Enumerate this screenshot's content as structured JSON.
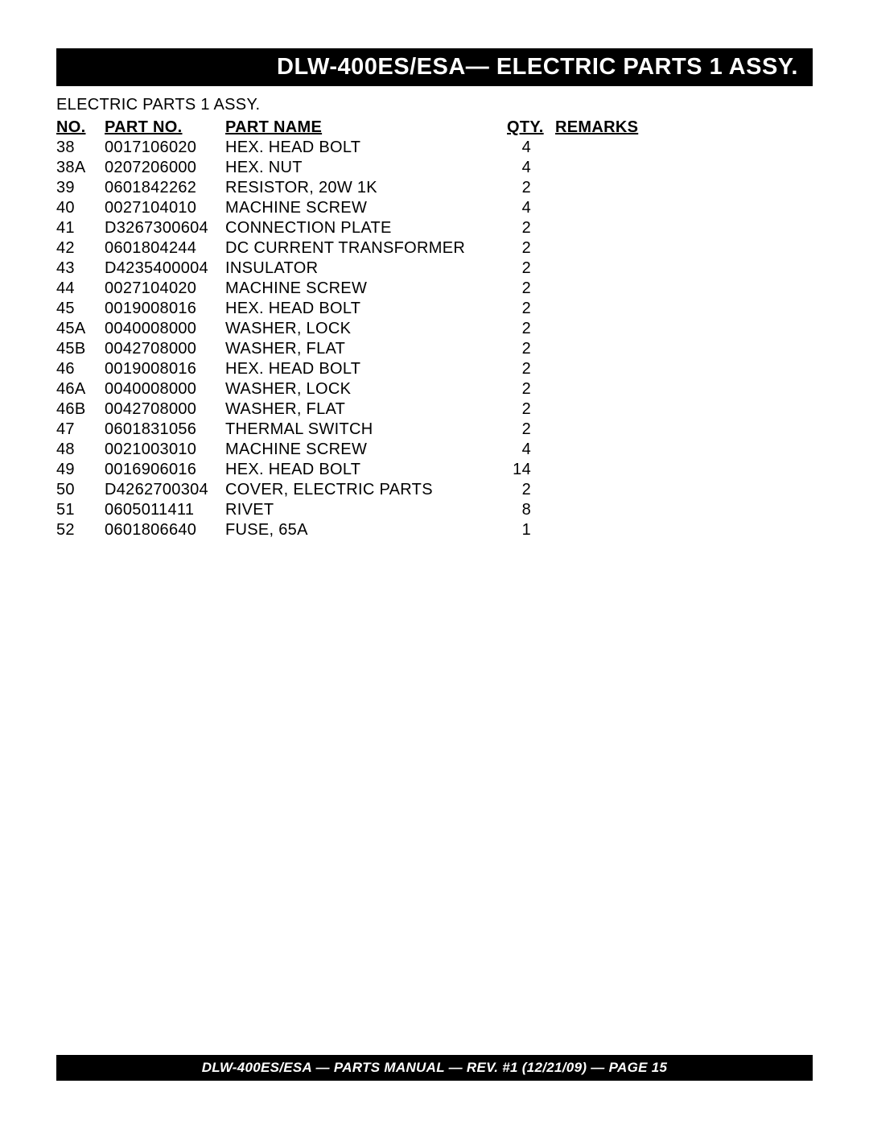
{
  "header": {
    "title": "DLW-400ES/ESA— ELECTRIC PARTS 1 ASSY."
  },
  "subtitle": "ELECTRIC PARTS 1 ASSY.",
  "table": {
    "columns": {
      "no": "NO.",
      "part_no": "PART NO.",
      "part_name": "PART NAME",
      "qty": "QTY.",
      "remarks": "REMARKS"
    },
    "rows": [
      {
        "no": "38",
        "pn": "0017106020",
        "name": "HEX. HEAD BOLT",
        "qty": "4",
        "rem": ""
      },
      {
        "no": "38A",
        "pn": "0207206000",
        "name": "HEX. NUT",
        "qty": "4",
        "rem": ""
      },
      {
        "no": "39",
        "pn": "0601842262",
        "name": "RESISTOR, 20W 1K",
        "qty": "2",
        "rem": ""
      },
      {
        "no": "40",
        "pn": "0027104010",
        "name": "MACHINE SCREW",
        "qty": "4",
        "rem": ""
      },
      {
        "no": "41",
        "pn": "D3267300604",
        "name": "CONNECTION PLATE",
        "qty": "2",
        "rem": ""
      },
      {
        "no": "42",
        "pn": "0601804244",
        "name": "DC CURRENT TRANSFORMER",
        "qty": "2",
        "rem": ""
      },
      {
        "no": "43",
        "pn": "D4235400004",
        "name": "INSULATOR",
        "qty": "2",
        "rem": ""
      },
      {
        "no": "44",
        "pn": "0027104020",
        "name": "MACHINE SCREW",
        "qty": "2",
        "rem": ""
      },
      {
        "no": "45",
        "pn": "0019008016",
        "name": "HEX. HEAD BOLT",
        "qty": "2",
        "rem": ""
      },
      {
        "no": "45A",
        "pn": "0040008000",
        "name": "WASHER, LOCK",
        "qty": "2",
        "rem": ""
      },
      {
        "no": "45B",
        "pn": "0042708000",
        "name": "WASHER, FLAT",
        "qty": "2",
        "rem": ""
      },
      {
        "no": "46",
        "pn": "0019008016",
        "name": "HEX. HEAD BOLT",
        "qty": "2",
        "rem": ""
      },
      {
        "no": "46A",
        "pn": "0040008000",
        "name": "WASHER, LOCK",
        "qty": "2",
        "rem": ""
      },
      {
        "no": "46B",
        "pn": "0042708000",
        "name": "WASHER, FLAT",
        "qty": "2",
        "rem": ""
      },
      {
        "no": "47",
        "pn": "0601831056",
        "name": "THERMAL SWITCH",
        "qty": "2",
        "rem": ""
      },
      {
        "no": "48",
        "pn": "0021003010",
        "name": "MACHINE SCREW",
        "qty": "4",
        "rem": ""
      },
      {
        "no": "49",
        "pn": "0016906016",
        "name": "HEX. HEAD BOLT",
        "qty": "14",
        "rem": ""
      },
      {
        "no": "50",
        "pn": "D4262700304",
        "name": "COVER, ELECTRIC PARTS",
        "qty": "2",
        "rem": ""
      },
      {
        "no": "51",
        "pn": "0605011411",
        "name": "RIVET",
        "qty": "8",
        "rem": ""
      },
      {
        "no": "52",
        "pn": "0601806640",
        "name": "FUSE, 65A",
        "qty": "1",
        "rem": ""
      }
    ]
  },
  "footer": {
    "text": "DLW-400ES/ESA — PARTS MANUAL — REV. #1 (12/21/09) — PAGE 15"
  },
  "colors": {
    "bar_bg": "#000000",
    "bar_fg": "#ffffff",
    "page_bg": "#ffffff",
    "text": "#000000"
  }
}
